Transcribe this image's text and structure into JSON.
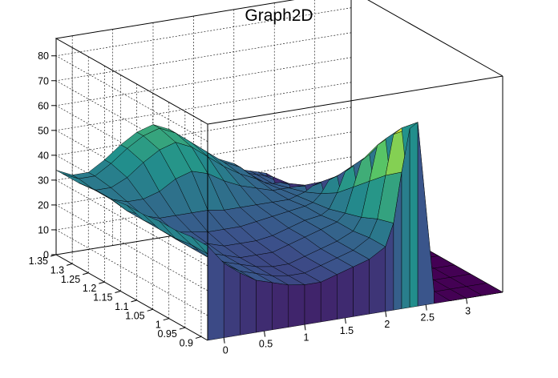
{
  "chart_data": {
    "type": "surface",
    "title": "Graph2D",
    "xlabel": "",
    "ylabel": "",
    "zlabel": "",
    "xlim": [
      -0.2,
      3.45
    ],
    "ylim": [
      0.88,
      1.35
    ],
    "zlim": [
      0,
      87
    ],
    "grid": true,
    "colormap": "viridis",
    "x_ticks": [
      "0",
      "0.5",
      "1",
      "1.5",
      "2",
      "2.5",
      "3"
    ],
    "x_tick_values": [
      0,
      0.5,
      1,
      1.5,
      2,
      2.5,
      3
    ],
    "y_ticks": [
      "0.9",
      "0.95",
      "1",
      "1.05",
      "1.1",
      "1.15",
      "1.2",
      "1.25",
      "1.3",
      "1.35"
    ],
    "y_tick_values": [
      0.9,
      0.95,
      1.0,
      1.05,
      1.1,
      1.15,
      1.2,
      1.25,
      1.3,
      1.35
    ],
    "z_ticks": [
      "0",
      "10",
      "20",
      "30",
      "40",
      "50",
      "60",
      "70",
      "80"
    ],
    "z_tick_values": [
      0,
      10,
      20,
      30,
      40,
      50,
      60,
      70,
      80
    ],
    "x_grid": [
      -0.2,
      0.0,
      0.2,
      0.4,
      0.6,
      0.8,
      1.0,
      1.2,
      1.4,
      1.6,
      1.8,
      2.0,
      2.1,
      2.2,
      2.3,
      2.4,
      2.6,
      2.8,
      3.0,
      3.2,
      3.45
    ],
    "y_grid": [
      0.88,
      0.93,
      0.98,
      1.03,
      1.08,
      1.13,
      1.18,
      1.23,
      1.28,
      1.33,
      1.35
    ],
    "z_values": [
      [
        38,
        30,
        25,
        21,
        19,
        17,
        16,
        16,
        18,
        20,
        22,
        26,
        35,
        55,
        72,
        74,
        5,
        0,
        0,
        0,
        0
      ],
      [
        38,
        30,
        25,
        21,
        19,
        17,
        16,
        16,
        18,
        20,
        22,
        26,
        33,
        50,
        66,
        68,
        5,
        0,
        0,
        0,
        0
      ],
      [
        37,
        30,
        24,
        21,
        19,
        17,
        16,
        16,
        18,
        20,
        22,
        25,
        30,
        44,
        58,
        60,
        4,
        0,
        0,
        0,
        0
      ],
      [
        37,
        29,
        24,
        21,
        19,
        17,
        17,
        17,
        19,
        21,
        23,
        25,
        28,
        38,
        48,
        50,
        4,
        0,
        0,
        0,
        0
      ],
      [
        36,
        29,
        24,
        21,
        20,
        18,
        18,
        18,
        19,
        21,
        23,
        24,
        26,
        32,
        40,
        42,
        3,
        0,
        0,
        0,
        0
      ],
      [
        36,
        29,
        25,
        22,
        21,
        20,
        20,
        20,
        21,
        22,
        23,
        24,
        25,
        28,
        33,
        34,
        3,
        0,
        0,
        0,
        0
      ],
      [
        35,
        29,
        26,
        24,
        24,
        24,
        24,
        23,
        23,
        23,
        23,
        23,
        24,
        25,
        27,
        28,
        2,
        0,
        0,
        0,
        0
      ],
      [
        35,
        30,
        28,
        28,
        30,
        34,
        36,
        34,
        30,
        27,
        25,
        23,
        23,
        23,
        23,
        23,
        2,
        0,
        0,
        0,
        0
      ],
      [
        34,
        30,
        30,
        33,
        38,
        42,
        44,
        41,
        36,
        31,
        27,
        24,
        22,
        21,
        21,
        20,
        1,
        0,
        0,
        0,
        0
      ],
      [
        34,
        31,
        31,
        35,
        40,
        44,
        46,
        43,
        38,
        33,
        28,
        25,
        22,
        21,
        20,
        19,
        1,
        0,
        0,
        0,
        0
      ],
      [
        34,
        31,
        31,
        35,
        40,
        44,
        46,
        43,
        38,
        33,
        28,
        25,
        22,
        21,
        20,
        19,
        1,
        0,
        0,
        0,
        0
      ]
    ]
  }
}
